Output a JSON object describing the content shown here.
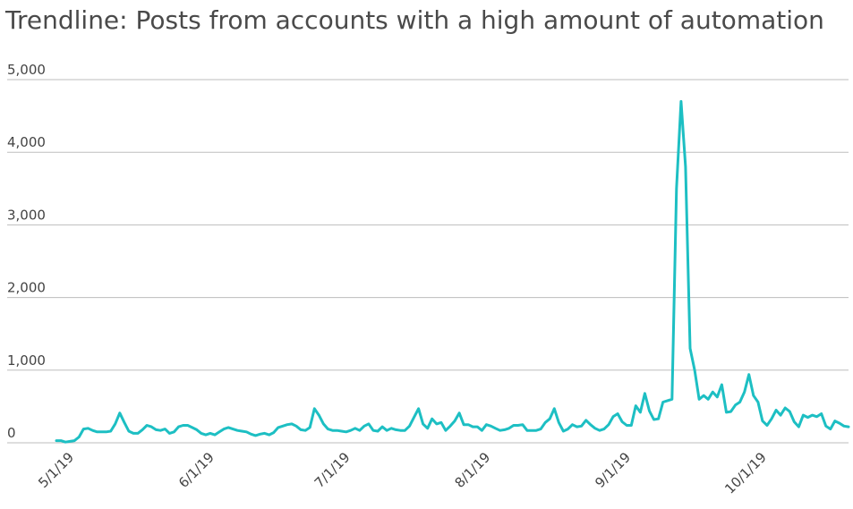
{
  "chart_data": {
    "type": "line",
    "title": "Trendline: Posts from accounts with a high amount of automation",
    "x": [
      "4/27/19",
      "4/28/19",
      "4/29/19",
      "4/30/19",
      "5/1/19",
      "5/2/19",
      "5/3/19",
      "5/4/19",
      "5/5/19",
      "5/6/19",
      "5/7/19",
      "5/8/19",
      "5/9/19",
      "5/10/19",
      "5/11/19",
      "5/12/19",
      "5/13/19",
      "5/14/19",
      "5/15/19",
      "5/16/19",
      "5/17/19",
      "5/18/19",
      "5/19/19",
      "5/20/19",
      "5/21/19",
      "5/22/19",
      "5/23/19",
      "5/24/19",
      "5/25/19",
      "5/26/19",
      "5/27/19",
      "5/28/19",
      "5/29/19",
      "5/30/19",
      "5/31/19",
      "6/1/19",
      "6/2/19",
      "6/3/19",
      "6/4/19",
      "6/5/19",
      "6/6/19",
      "6/7/19",
      "6/8/19",
      "6/9/19",
      "6/10/19",
      "6/11/19",
      "6/12/19",
      "6/13/19",
      "6/14/19",
      "6/15/19",
      "6/16/19",
      "6/17/19",
      "6/18/19",
      "6/19/19",
      "6/20/19",
      "6/21/19",
      "6/22/19",
      "6/23/19",
      "6/24/19",
      "6/25/19",
      "6/26/19",
      "6/27/19",
      "6/28/19",
      "6/29/19",
      "6/30/19",
      "7/1/19",
      "7/2/19",
      "7/3/19",
      "7/4/19",
      "7/5/19",
      "7/6/19",
      "7/7/19",
      "7/8/19",
      "7/9/19",
      "7/10/19",
      "7/11/19",
      "7/12/19",
      "7/13/19",
      "7/14/19",
      "7/15/19",
      "7/16/19",
      "7/17/19",
      "7/18/19",
      "7/19/19",
      "7/20/19",
      "7/21/19",
      "7/22/19",
      "7/23/19",
      "7/24/19",
      "7/25/19",
      "7/26/19",
      "7/27/19",
      "7/28/19",
      "7/29/19",
      "7/30/19",
      "7/31/19",
      "8/1/19",
      "8/2/19",
      "8/3/19",
      "8/4/19",
      "8/5/19",
      "8/6/19",
      "8/7/19",
      "8/8/19",
      "8/9/19",
      "8/10/19",
      "8/11/19",
      "8/12/19",
      "8/13/19",
      "8/14/19",
      "8/15/19",
      "8/16/19",
      "8/17/19",
      "8/18/19",
      "8/19/19",
      "8/20/19",
      "8/21/19",
      "8/22/19",
      "8/23/19",
      "8/24/19",
      "8/25/19",
      "8/26/19",
      "8/27/19",
      "8/28/19",
      "8/29/19",
      "8/30/19",
      "8/31/19",
      "9/1/19",
      "9/2/19",
      "9/3/19",
      "9/4/19",
      "9/5/19",
      "9/6/19",
      "9/7/19",
      "9/8/19",
      "9/9/19",
      "9/10/19",
      "9/11/19",
      "9/12/19",
      "9/13/19",
      "9/14/19",
      "9/15/19",
      "9/16/19",
      "9/17/19",
      "9/18/19",
      "9/19/19",
      "9/20/19",
      "9/21/19",
      "9/22/19",
      "9/23/19",
      "9/24/19",
      "9/25/19",
      "9/26/19",
      "9/27/19",
      "9/28/19",
      "9/29/19",
      "9/30/19",
      "10/1/19",
      "10/2/19",
      "10/3/19",
      "10/4/19",
      "10/5/19",
      "10/6/19",
      "10/7/19",
      "10/8/19",
      "10/9/19",
      "10/10/19",
      "10/11/19",
      "10/12/19",
      "10/13/19",
      "10/14/19",
      "10/15/19",
      "10/16/19",
      "10/17/19",
      "10/18/19",
      "10/19/19"
    ],
    "series": [
      {
        "name": "Posts",
        "color": "#1dbfc3",
        "values": [
          30,
          30,
          10,
          20,
          30,
          80,
          190,
          200,
          170,
          150,
          150,
          150,
          160,
          260,
          410,
          280,
          160,
          130,
          130,
          180,
          240,
          220,
          180,
          170,
          190,
          130,
          150,
          220,
          240,
          240,
          210,
          180,
          130,
          110,
          130,
          110,
          150,
          190,
          210,
          190,
          170,
          160,
          150,
          120,
          100,
          120,
          130,
          110,
          140,
          210,
          230,
          250,
          260,
          230,
          180,
          170,
          210,
          470,
          380,
          260,
          190,
          170,
          170,
          160,
          150,
          170,
          200,
          170,
          230,
          260,
          170,
          160,
          220,
          170,
          200,
          180,
          170,
          170,
          230,
          350,
          470,
          260,
          200,
          330,
          260,
          280,
          170,
          230,
          300,
          410,
          250,
          250,
          220,
          220,
          170,
          250,
          230,
          200,
          170,
          180,
          200,
          240,
          240,
          250,
          170,
          170,
          170,
          190,
          280,
          330,
          470,
          280,
          160,
          190,
          250,
          220,
          230,
          310,
          250,
          200,
          170,
          190,
          250,
          360,
          400,
          290,
          240,
          240,
          510,
          420,
          680,
          440,
          320,
          330,
          560,
          580,
          600,
          3500,
          4700,
          3800,
          1300,
          1000,
          600,
          650,
          600,
          700,
          630,
          800,
          420,
          430,
          520,
          560,
          700,
          940,
          650,
          560,
          300,
          240,
          330,
          450,
          380,
          480,
          430,
          290,
          220,
          380,
          350,
          380,
          360,
          400,
          230,
          190,
          300,
          270,
          230,
          220
        ]
      }
    ],
    "xticks": [
      "5/1/19",
      "6/1/19",
      "7/1/19",
      "8/1/19",
      "9/1/19",
      "10/1/19"
    ],
    "ylim": [
      0,
      5000
    ],
    "yticks": [
      0,
      {
        "value": 1000,
        "label": "1,000"
      },
      {
        "value": 2000,
        "label": "2,000"
      },
      {
        "value": 3000,
        "label": "3,000"
      },
      {
        "value": 4000,
        "label": "4,000"
      },
      {
        "value": 5000,
        "label": "5,000"
      }
    ],
    "grid": true
  }
}
